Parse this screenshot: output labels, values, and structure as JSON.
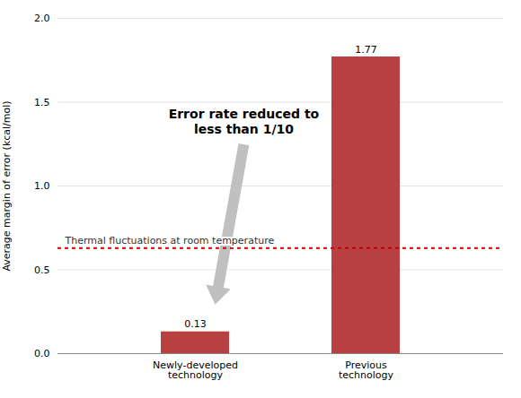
{
  "chart_data": {
    "type": "bar",
    "categories": [
      "Newly-developed\ntechnology",
      "Previous\ntechnology"
    ],
    "values": [
      0.13,
      1.77
    ],
    "color": "#b94040",
    "ylabel": "Average margin of error (kcal/mol)",
    "ylim": [
      0,
      2.0
    ],
    "yticks": [
      {
        "value": 0,
        "label": "0.0"
      },
      0.5,
      {
        "value": 1,
        "label": "1.0"
      },
      1.5,
      {
        "value": 2,
        "label": "2.0"
      }
    ],
    "grid": true,
    "data_labels": true,
    "annotations": [
      "Error rate reduced to\nless than 1/10"
    ],
    "reference_lines": [
      {
        "value": 0.63,
        "label": "Thermal fluctuations at room temperature",
        "color": "#cc0000"
      }
    ]
  }
}
